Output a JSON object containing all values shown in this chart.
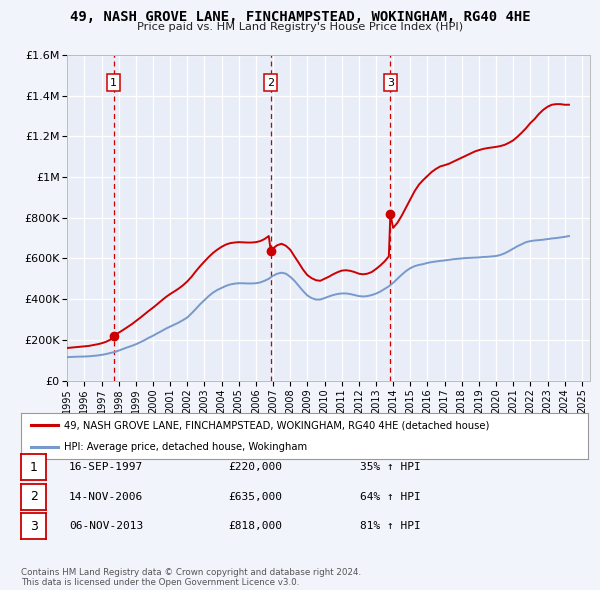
{
  "title": "49, NASH GROVE LANE, FINCHAMPSTEAD, WOKINGHAM, RG40 4HE",
  "subtitle": "Price paid vs. HM Land Registry's House Price Index (HPI)",
  "background_color": "#f2f4fb",
  "plot_bg_color": "#e8edf8",
  "ylim": [
    0,
    1600000
  ],
  "yticks": [
    0,
    200000,
    400000,
    600000,
    800000,
    1000000,
    1200000,
    1400000,
    1600000
  ],
  "ytick_labels": [
    "£0",
    "£200K",
    "£400K",
    "£600K",
    "£800K",
    "£1M",
    "£1.2M",
    "£1.4M",
    "£1.6M"
  ],
  "xmin": 1995.0,
  "xmax": 2025.5,
  "sale_dates": [
    1997.71,
    2006.87,
    2013.84
  ],
  "sale_prices": [
    220000,
    635000,
    818000
  ],
  "sale_labels": [
    "1",
    "2",
    "3"
  ],
  "vline_color": "#cc0000",
  "marker_color": "#cc0000",
  "red_line_color": "#cc0000",
  "blue_line_color": "#7799cc",
  "legend_red_label": "49, NASH GROVE LANE, FINCHAMPSTEAD, WOKINGHAM, RG40 4HE (detached house)",
  "legend_blue_label": "HPI: Average price, detached house, Wokingham",
  "table_rows": [
    {
      "num": "1",
      "date": "16-SEP-1997",
      "price": "£220,000",
      "pct": "35% ↑ HPI"
    },
    {
      "num": "2",
      "date": "14-NOV-2006",
      "price": "£635,000",
      "pct": "64% ↑ HPI"
    },
    {
      "num": "3",
      "date": "06-NOV-2013",
      "price": "£818,000",
      "pct": "81% ↑ HPI"
    }
  ],
  "footer": "Contains HM Land Registry data © Crown copyright and database right 2024.\nThis data is licensed under the Open Government Licence v3.0.",
  "hpi_years": [
    1995.0,
    1995.25,
    1995.5,
    1995.75,
    1996.0,
    1996.25,
    1996.5,
    1996.75,
    1997.0,
    1997.25,
    1997.5,
    1997.75,
    1998.0,
    1998.25,
    1998.5,
    1998.75,
    1999.0,
    1999.25,
    1999.5,
    1999.75,
    2000.0,
    2000.25,
    2000.5,
    2000.75,
    2001.0,
    2001.25,
    2001.5,
    2001.75,
    2002.0,
    2002.25,
    2002.5,
    2002.75,
    2003.0,
    2003.25,
    2003.5,
    2003.75,
    2004.0,
    2004.25,
    2004.5,
    2004.75,
    2005.0,
    2005.25,
    2005.5,
    2005.75,
    2006.0,
    2006.25,
    2006.5,
    2006.75,
    2007.0,
    2007.25,
    2007.5,
    2007.75,
    2008.0,
    2008.25,
    2008.5,
    2008.75,
    2009.0,
    2009.25,
    2009.5,
    2009.75,
    2010.0,
    2010.25,
    2010.5,
    2010.75,
    2011.0,
    2011.25,
    2011.5,
    2011.75,
    2012.0,
    2012.25,
    2012.5,
    2012.75,
    2013.0,
    2013.25,
    2013.5,
    2013.75,
    2014.0,
    2014.25,
    2014.5,
    2014.75,
    2015.0,
    2015.25,
    2015.5,
    2015.75,
    2016.0,
    2016.25,
    2016.5,
    2016.75,
    2017.0,
    2017.25,
    2017.5,
    2017.75,
    2018.0,
    2018.25,
    2018.5,
    2018.75,
    2019.0,
    2019.25,
    2019.5,
    2019.75,
    2020.0,
    2020.25,
    2020.5,
    2020.75,
    2021.0,
    2021.25,
    2021.5,
    2021.75,
    2022.0,
    2022.25,
    2022.5,
    2022.75,
    2023.0,
    2023.25,
    2023.5,
    2023.75,
    2024.0,
    2024.25
  ],
  "hpi_values": [
    115000,
    116000,
    117000,
    117500,
    118000,
    119000,
    121000,
    123000,
    126000,
    130000,
    135000,
    140000,
    147000,
    155000,
    163000,
    170000,
    178000,
    188000,
    198000,
    210000,
    220000,
    232000,
    243000,
    255000,
    265000,
    275000,
    285000,
    297000,
    310000,
    330000,
    352000,
    375000,
    395000,
    415000,
    432000,
    445000,
    455000,
    465000,
    472000,
    476000,
    478000,
    478000,
    477000,
    477000,
    478000,
    482000,
    490000,
    500000,
    515000,
    525000,
    530000,
    525000,
    510000,
    490000,
    465000,
    440000,
    418000,
    405000,
    398000,
    398000,
    405000,
    413000,
    420000,
    425000,
    428000,
    428000,
    425000,
    420000,
    415000,
    413000,
    415000,
    420000,
    427000,
    437000,
    450000,
    463000,
    480000,
    500000,
    520000,
    538000,
    552000,
    562000,
    568000,
    572000,
    578000,
    582000,
    585000,
    588000,
    590000,
    593000,
    596000,
    598000,
    600000,
    602000,
    603000,
    604000,
    605000,
    607000,
    608000,
    610000,
    612000,
    617000,
    625000,
    636000,
    648000,
    660000,
    670000,
    680000,
    685000,
    688000,
    690000,
    692000,
    695000,
    698000,
    700000,
    703000,
    706000,
    710000
  ],
  "red_years": [
    1995.0,
    1995.25,
    1995.5,
    1995.75,
    1996.0,
    1996.25,
    1996.5,
    1996.75,
    1997.0,
    1997.25,
    1997.5,
    1997.71,
    1997.75,
    1998.0,
    1998.25,
    1998.5,
    1998.75,
    1999.0,
    1999.25,
    1999.5,
    1999.75,
    2000.0,
    2000.25,
    2000.5,
    2000.75,
    2001.0,
    2001.25,
    2001.5,
    2001.75,
    2002.0,
    2002.25,
    2002.5,
    2002.75,
    2003.0,
    2003.25,
    2003.5,
    2003.75,
    2004.0,
    2004.25,
    2004.5,
    2004.75,
    2005.0,
    2005.25,
    2005.5,
    2005.75,
    2006.0,
    2006.25,
    2006.5,
    2006.75,
    2006.87,
    2007.0,
    2007.25,
    2007.5,
    2007.75,
    2008.0,
    2008.25,
    2008.5,
    2008.75,
    2009.0,
    2009.25,
    2009.5,
    2009.75,
    2010.0,
    2010.25,
    2010.5,
    2010.75,
    2011.0,
    2011.25,
    2011.5,
    2011.75,
    2012.0,
    2012.25,
    2012.5,
    2012.75,
    2013.0,
    2013.25,
    2013.5,
    2013.75,
    2013.84,
    2014.0,
    2014.25,
    2014.5,
    2014.75,
    2015.0,
    2015.25,
    2015.5,
    2015.75,
    2016.0,
    2016.25,
    2016.5,
    2016.75,
    2017.0,
    2017.25,
    2017.5,
    2017.75,
    2018.0,
    2018.25,
    2018.5,
    2018.75,
    2019.0,
    2019.25,
    2019.5,
    2019.75,
    2020.0,
    2020.25,
    2020.5,
    2020.75,
    2021.0,
    2021.25,
    2021.5,
    2021.75,
    2022.0,
    2022.25,
    2022.5,
    2022.75,
    2023.0,
    2023.25,
    2023.5,
    2023.75,
    2024.0,
    2024.25
  ],
  "red_values": [
    160000,
    162000,
    164000,
    166000,
    168000,
    170000,
    174000,
    178000,
    183000,
    190000,
    200000,
    220000,
    222000,
    235000,
    248000,
    262000,
    276000,
    292000,
    308000,
    325000,
    342000,
    358000,
    375000,
    393000,
    410000,
    425000,
    438000,
    452000,
    468000,
    487000,
    510000,
    537000,
    562000,
    585000,
    607000,
    627000,
    643000,
    657000,
    668000,
    675000,
    678000,
    680000,
    679000,
    678000,
    678000,
    680000,
    685000,
    695000,
    710000,
    635000,
    650000,
    665000,
    672000,
    662000,
    643000,
    610000,
    578000,
    545000,
    518000,
    503000,
    493000,
    490000,
    500000,
    510000,
    522000,
    532000,
    540000,
    542000,
    539000,
    533000,
    525000,
    522000,
    525000,
    533000,
    548000,
    565000,
    585000,
    610000,
    818000,
    750000,
    775000,
    810000,
    850000,
    890000,
    930000,
    962000,
    985000,
    1005000,
    1025000,
    1040000,
    1052000,
    1058000,
    1065000,
    1075000,
    1085000,
    1095000,
    1105000,
    1115000,
    1125000,
    1132000,
    1138000,
    1142000,
    1145000,
    1148000,
    1152000,
    1158000,
    1168000,
    1180000,
    1198000,
    1218000,
    1240000,
    1265000,
    1285000,
    1310000,
    1330000,
    1345000,
    1355000,
    1358000,
    1358000,
    1355000,
    1355000
  ]
}
